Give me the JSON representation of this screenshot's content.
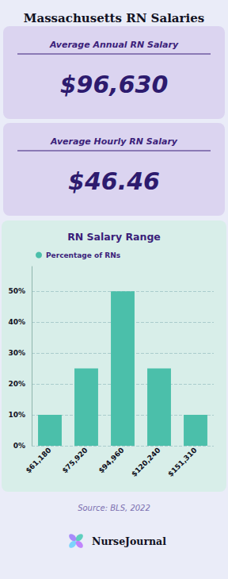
{
  "chart_data": {
    "type": "bar",
    "title": "Massachusetts RN Salaries",
    "annotations": [
      "Average Annual RN Salary",
      "$96,630",
      "Average Hourly RN Salary",
      "$46.46",
      "RN Salary Range",
      "Source: BLS, 2022",
      "NurseJournal"
    ],
    "categories": [
      "$61,180",
      "$75,920",
      "$94,960",
      "$120,240",
      "$151,310"
    ],
    "series": [
      {
        "name": "Percentage of RNs",
        "color": "#4bbfaa",
        "values": [
          10,
          25,
          50,
          25,
          10
        ]
      }
    ],
    "ylim": [
      0,
      58
    ],
    "yticks": [
      {
        "value": 0,
        "label": "0%"
      },
      {
        "value": 10,
        "label": "10%"
      },
      {
        "value": 20,
        "label": "20%"
      },
      {
        "value": 30,
        "label": "30%"
      },
      {
        "value": 40,
        "label": "40%"
      },
      {
        "value": 50,
        "label": "50%"
      }
    ],
    "grid": true,
    "legend": "upper left"
  }
}
